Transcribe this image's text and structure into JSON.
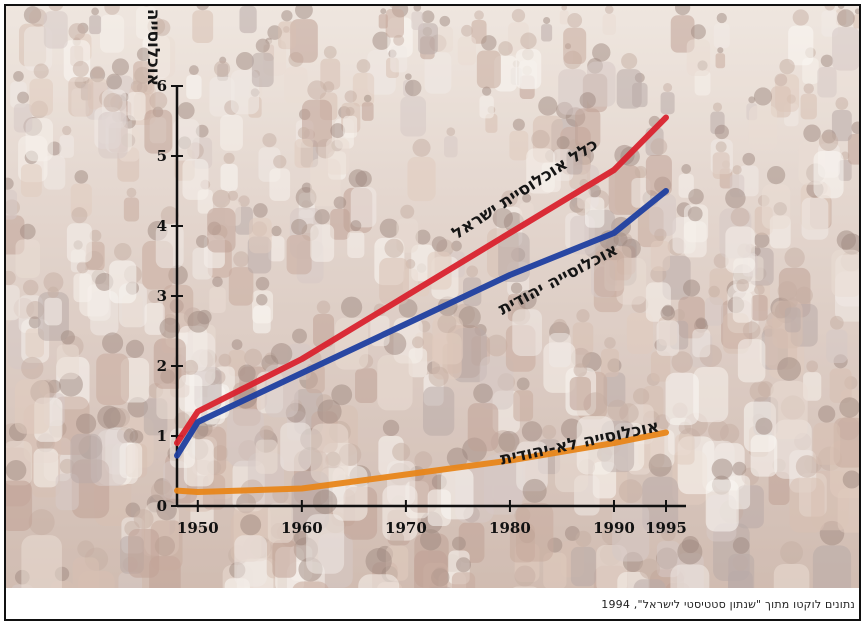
{
  "chart_data": {
    "type": "line",
    "ylabel": "אוכלוסייה במיליונים",
    "ylim": [
      0,
      6
    ],
    "xlim": [
      1948,
      1995
    ],
    "y_ticks": [
      0,
      1,
      2,
      3,
      4,
      5,
      6
    ],
    "x_ticks": [
      {
        "value": 1950,
        "label": "1950"
      },
      {
        "value": 1960,
        "label": "1960"
      },
      {
        "value": 1970,
        "label": "1970"
      },
      {
        "value": 1980,
        "label": "1980"
      },
      {
        "value": 1990,
        "label": "1990"
      },
      {
        "value": 1995,
        "label": "1995"
      }
    ],
    "grid": false,
    "series": [
      {
        "name": "כלל אוכלוסיית ישראל",
        "color": "#d9232e",
        "points": [
          [
            1948,
            0.9
          ],
          [
            1950,
            1.35
          ],
          [
            1960,
            2.1
          ],
          [
            1970,
            3.0
          ],
          [
            1980,
            3.9
          ],
          [
            1990,
            4.8
          ],
          [
            1995,
            5.55
          ]
        ]
      },
      {
        "name": "אוכלוסייה יהודית",
        "color": "#1f3fa0",
        "points": [
          [
            1948,
            0.72
          ],
          [
            1950,
            1.2
          ],
          [
            1960,
            1.9
          ],
          [
            1970,
            2.6
          ],
          [
            1980,
            3.3
          ],
          [
            1990,
            3.9
          ],
          [
            1995,
            4.5
          ]
        ]
      },
      {
        "name": "אוכלוסייה לא-יהודית",
        "color": "#e8861a",
        "points": [
          [
            1948,
            0.22
          ],
          [
            1950,
            0.2
          ],
          [
            1960,
            0.25
          ],
          [
            1970,
            0.45
          ],
          [
            1980,
            0.65
          ],
          [
            1990,
            0.9
          ],
          [
            1995,
            1.05
          ]
        ]
      }
    ]
  },
  "caption": {
    "source": "נתונים לוקטו מתוך \"שנתון סטטיסטי לישראל\", 1994"
  }
}
